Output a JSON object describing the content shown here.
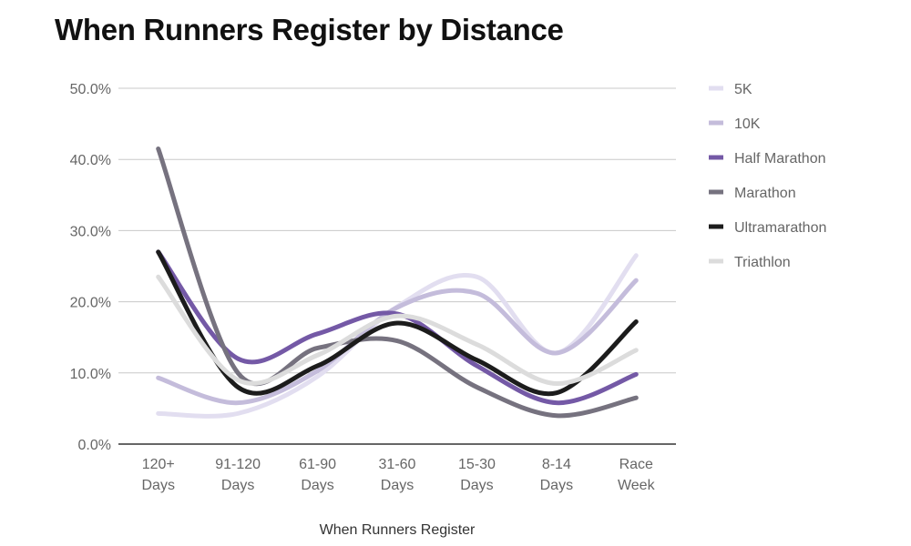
{
  "chart_data": {
    "type": "line",
    "title": "When Runners Register by Distance",
    "xlabel": "When Runners Register",
    "ylabel": "",
    "categories": [
      [
        "120+",
        "Days"
      ],
      [
        "91-120",
        "Days"
      ],
      [
        "61-90",
        "Days"
      ],
      [
        "31-60",
        "Days"
      ],
      [
        "15-30",
        "Days"
      ],
      [
        "8-14",
        "Days"
      ],
      [
        "Race",
        "Week"
      ]
    ],
    "y_ticks": [
      "0.0%",
      "10.0%",
      "20.0%",
      "30.0%",
      "40.0%",
      "50.0%"
    ],
    "ylim": [
      0,
      50
    ],
    "grid": true,
    "legend_position": "right",
    "series": [
      {
        "name": "5K",
        "color": "#e2def0",
        "values": [
          4.3,
          4.3,
          9.5,
          19.3,
          23.5,
          12.8,
          26.5
        ]
      },
      {
        "name": "10K",
        "color": "#c4bcdb",
        "values": [
          9.3,
          5.8,
          10.3,
          19.2,
          21.2,
          12.8,
          23.0
        ]
      },
      {
        "name": "Half Marathon",
        "color": "#7459a6",
        "values": [
          27.0,
          12.0,
          15.5,
          18.3,
          11.0,
          5.8,
          9.8
        ]
      },
      {
        "name": "Marathon",
        "color": "#76727f",
        "values": [
          41.5,
          10.0,
          13.5,
          14.5,
          8.0,
          4.0,
          6.5
        ]
      },
      {
        "name": "Ultramarathon",
        "color": "#1c1c1c",
        "values": [
          27.0,
          8.0,
          11.0,
          17.0,
          11.8,
          7.2,
          17.2
        ]
      },
      {
        "name": "Triathlon",
        "color": "#dcdcdc",
        "values": [
          23.5,
          9.0,
          12.5,
          18.0,
          14.0,
          8.5,
          13.2
        ]
      }
    ]
  }
}
